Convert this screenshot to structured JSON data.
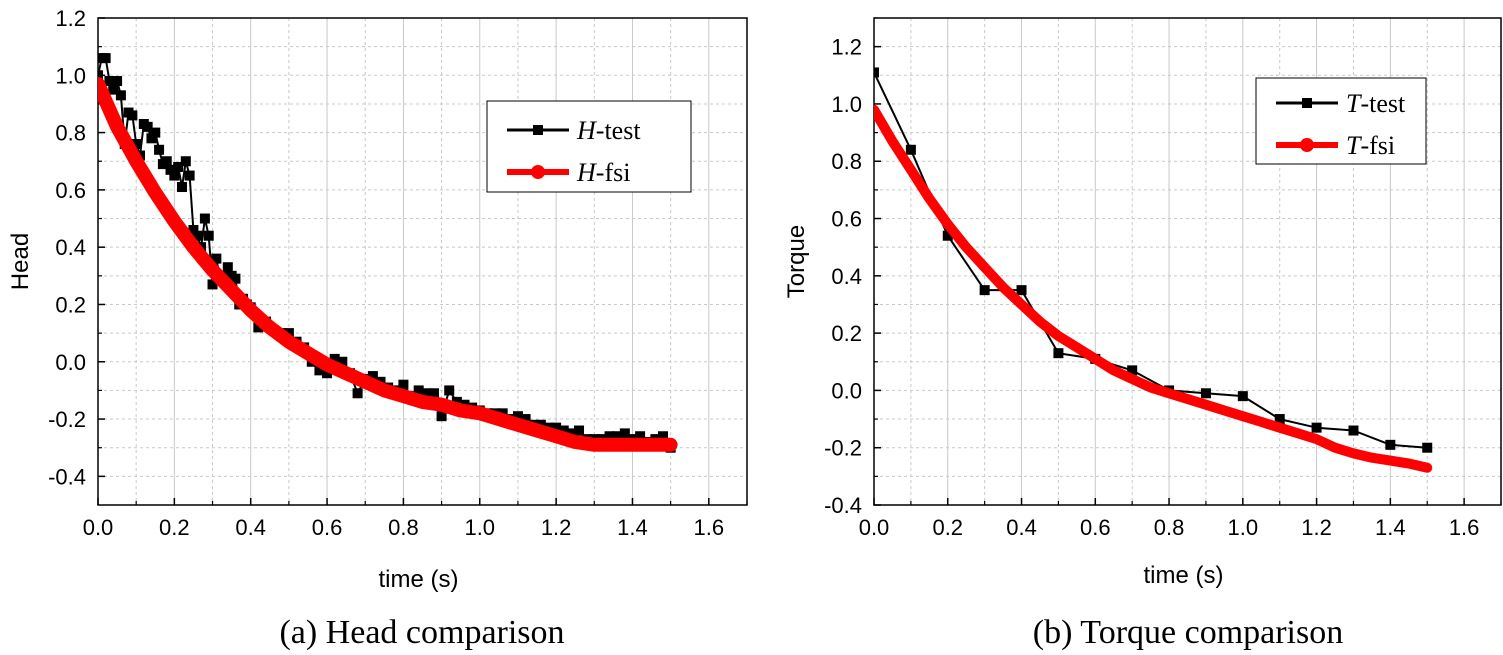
{
  "chart_data": [
    {
      "type": "line",
      "caption": "(a) Head comparison",
      "xlabel": "time (s)",
      "ylabel": "Head",
      "xlim": [
        0.0,
        1.7
      ],
      "ylim": [
        -0.5,
        1.2
      ],
      "xticks": [
        "0.0",
        "0.2",
        "0.4",
        "0.6",
        "0.8",
        "1.0",
        "1.2",
        "1.4",
        "1.6"
      ],
      "yticks": [
        "-0.4",
        "-0.2",
        "0.0",
        "0.2",
        "0.4",
        "0.6",
        "0.8",
        "1.0",
        "1.2"
      ],
      "grid": true,
      "legend_position": "top-right",
      "series": [
        {
          "name_italic": "H",
          "name_rest": "-test",
          "color": "#000000",
          "marker": "square",
          "line_width": 2,
          "x": [
            0.0,
            0.01,
            0.02,
            0.03,
            0.04,
            0.05,
            0.06,
            0.07,
            0.08,
            0.09,
            0.1,
            0.11,
            0.12,
            0.13,
            0.14,
            0.15,
            0.16,
            0.17,
            0.18,
            0.19,
            0.2,
            0.21,
            0.22,
            0.23,
            0.24,
            0.25,
            0.26,
            0.27,
            0.28,
            0.29,
            0.3,
            0.31,
            0.32,
            0.33,
            0.34,
            0.35,
            0.36,
            0.37,
            0.38,
            0.39,
            0.4,
            0.42,
            0.44,
            0.46,
            0.48,
            0.5,
            0.52,
            0.54,
            0.56,
            0.58,
            0.6,
            0.62,
            0.64,
            0.66,
            0.68,
            0.7,
            0.72,
            0.74,
            0.76,
            0.78,
            0.8,
            0.82,
            0.84,
            0.86,
            0.88,
            0.9,
            0.92,
            0.94,
            0.96,
            0.98,
            1.0,
            1.02,
            1.04,
            1.06,
            1.08,
            1.1,
            1.12,
            1.14,
            1.16,
            1.18,
            1.2,
            1.22,
            1.24,
            1.26,
            1.28,
            1.3,
            1.32,
            1.34,
            1.36,
            1.38,
            1.4,
            1.42,
            1.44,
            1.46,
            1.48,
            1.5
          ],
          "y": [
            1.0,
            1.06,
            1.06,
            0.98,
            0.95,
            0.98,
            0.93,
            0.76,
            0.87,
            0.86,
            0.76,
            0.72,
            0.83,
            0.82,
            0.78,
            0.8,
            0.74,
            0.69,
            0.7,
            0.67,
            0.65,
            0.68,
            0.61,
            0.7,
            0.65,
            0.46,
            0.44,
            0.4,
            0.5,
            0.44,
            0.27,
            0.36,
            0.29,
            0.3,
            0.33,
            0.3,
            0.29,
            0.2,
            0.22,
            0.2,
            0.19,
            0.12,
            0.14,
            0.11,
            0.1,
            0.1,
            0.07,
            0.05,
            0.0,
            -0.03,
            -0.04,
            0.01,
            0.0,
            -0.04,
            -0.11,
            -0.06,
            -0.05,
            -0.07,
            -0.09,
            -0.1,
            -0.08,
            -0.12,
            -0.1,
            -0.11,
            -0.11,
            -0.19,
            -0.1,
            -0.14,
            -0.15,
            -0.16,
            -0.17,
            -0.18,
            -0.18,
            -0.18,
            -0.2,
            -0.19,
            -0.2,
            -0.22,
            -0.22,
            -0.23,
            -0.23,
            -0.24,
            -0.25,
            -0.24,
            -0.27,
            -0.27,
            -0.27,
            -0.26,
            -0.26,
            -0.25,
            -0.27,
            -0.26,
            -0.28,
            -0.27,
            -0.26,
            -0.3
          ]
        },
        {
          "name_italic": "H",
          "name_rest": "-fsi",
          "color": "#ff0000",
          "marker": "circle",
          "line_width": 14,
          "x": [
            0.0,
            0.05,
            0.1,
            0.15,
            0.2,
            0.25,
            0.3,
            0.35,
            0.4,
            0.45,
            0.5,
            0.55,
            0.6,
            0.65,
            0.7,
            0.75,
            0.8,
            0.85,
            0.9,
            0.95,
            1.0,
            1.05,
            1.1,
            1.15,
            1.2,
            1.25,
            1.3,
            1.35,
            1.4,
            1.45,
            1.5
          ],
          "y": [
            0.97,
            0.82,
            0.7,
            0.59,
            0.49,
            0.4,
            0.32,
            0.25,
            0.18,
            0.12,
            0.07,
            0.03,
            -0.01,
            -0.04,
            -0.07,
            -0.1,
            -0.12,
            -0.14,
            -0.15,
            -0.17,
            -0.18,
            -0.2,
            -0.22,
            -0.24,
            -0.26,
            -0.28,
            -0.29,
            -0.29,
            -0.29,
            -0.29,
            -0.29
          ]
        }
      ]
    },
    {
      "type": "line",
      "caption": "(b) Torque comparison",
      "xlabel": "time (s)",
      "ylabel": "Torque",
      "xlim": [
        0.0,
        1.7
      ],
      "ylim": [
        -0.4,
        1.3
      ],
      "xticks": [
        "0.0",
        "0.2",
        "0.4",
        "0.6",
        "0.8",
        "1.0",
        "1.2",
        "1.4",
        "1.6"
      ],
      "yticks": [
        "-0.4",
        "-0.2",
        "0.0",
        "0.2",
        "0.4",
        "0.6",
        "0.8",
        "1.0",
        "1.2"
      ],
      "grid": true,
      "legend_position": "top-right",
      "series": [
        {
          "name_italic": "T",
          "name_rest": "-test",
          "color": "#000000",
          "marker": "square",
          "line_width": 2,
          "x": [
            0.0,
            0.1,
            0.2,
            0.3,
            0.4,
            0.5,
            0.6,
            0.7,
            0.8,
            0.9,
            1.0,
            1.1,
            1.2,
            1.3,
            1.4,
            1.5
          ],
          "y": [
            1.11,
            0.84,
            0.54,
            0.35,
            0.35,
            0.13,
            0.11,
            0.07,
            0.0,
            -0.01,
            -0.02,
            -0.1,
            -0.13,
            -0.14,
            -0.19,
            -0.2
          ]
        },
        {
          "name_italic": "T",
          "name_rest": "-fsi",
          "color": "#ff0000",
          "marker": "circle",
          "line_width": 10,
          "x": [
            0.0,
            0.05,
            0.1,
            0.15,
            0.2,
            0.25,
            0.3,
            0.35,
            0.4,
            0.45,
            0.5,
            0.55,
            0.6,
            0.65,
            0.7,
            0.75,
            0.8,
            0.85,
            0.9,
            0.95,
            1.0,
            1.05,
            1.1,
            1.15,
            1.2,
            1.25,
            1.3,
            1.35,
            1.4,
            1.45,
            1.5
          ],
          "y": [
            0.98,
            0.87,
            0.77,
            0.67,
            0.58,
            0.5,
            0.43,
            0.36,
            0.3,
            0.24,
            0.19,
            0.15,
            0.11,
            0.07,
            0.04,
            0.01,
            -0.01,
            -0.03,
            -0.05,
            -0.07,
            -0.09,
            -0.11,
            -0.13,
            -0.15,
            -0.17,
            -0.2,
            -0.22,
            -0.235,
            -0.245,
            -0.255,
            -0.27
          ]
        }
      ]
    }
  ]
}
